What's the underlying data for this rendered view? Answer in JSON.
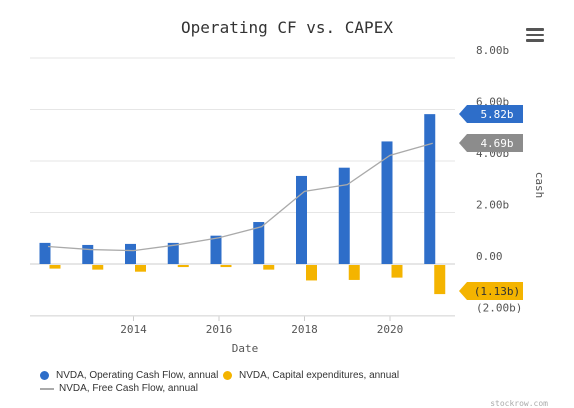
{
  "chart_data": {
    "type": "bar",
    "title": "Operating CF vs. CAPEX",
    "xlabel": "Date",
    "ylabel": "cash",
    "x": [
      2012,
      2013,
      2014,
      2015,
      2016,
      2017,
      2018,
      2019,
      2020,
      2021
    ],
    "xticks": [
      "2014",
      "2016",
      "2018",
      "2020"
    ],
    "yticks": [
      "8.00b",
      "6.00b",
      "4.00b",
      "2.00b",
      "0.00",
      "(2.00b)"
    ],
    "ylim": [
      -2.0,
      8.0
    ],
    "series": [
      {
        "name": "NVDA, Operating Cash Flow, annual",
        "type": "bar",
        "color": "#2e6ec9",
        "values": [
          0.82,
          0.74,
          0.78,
          0.82,
          1.1,
          1.63,
          3.42,
          3.74,
          4.76,
          5.82
        ]
      },
      {
        "name": "NVDA, Capital expenditures, annual",
        "type": "bar",
        "color": "#f4b400",
        "values": [
          -0.14,
          -0.18,
          -0.26,
          -0.08,
          -0.08,
          -0.18,
          -0.6,
          -0.58,
          -0.49,
          -1.13
        ]
      },
      {
        "name": "NVDA, Free Cash Flow, annual",
        "type": "line",
        "color": "#aaaaaa",
        "values": [
          0.68,
          0.56,
          0.52,
          0.74,
          1.02,
          1.45,
          2.82,
          3.08,
          4.22,
          4.69
        ]
      }
    ],
    "last_value_labels": [
      "5.82b",
      "4.69b",
      "(1.13b)"
    ],
    "grid": true,
    "legend_position": "bottom"
  },
  "colors": {
    "ocf": "#2e6ec9",
    "capex": "#f4b400",
    "fcf": "#aaaaaa",
    "fcf_tag": "#8c8c8c"
  },
  "menu": {
    "icon": "hamburger-menu-icon"
  },
  "watermark": "stockrow.com"
}
